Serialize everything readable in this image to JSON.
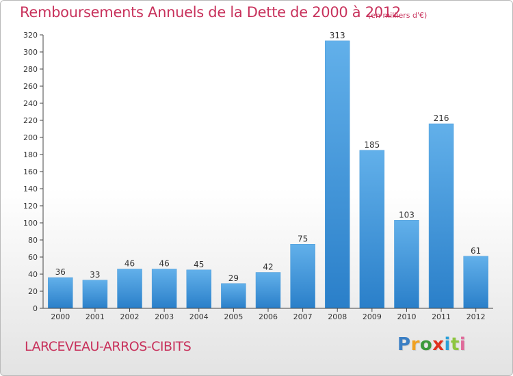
{
  "header": {
    "title": "Remboursements Annuels de la Dette de 2000 à 2012",
    "units": "(en milliers d'€)"
  },
  "footer": {
    "commune": "LARCEVEAU-ARROS-CIBITS",
    "logo_letters": [
      "P",
      "r",
      "o",
      "x",
      "i",
      "t",
      "i"
    ],
    "logo_colors": [
      "#3b7fc4",
      "#f0a020",
      "#3b9a3b",
      "#e0301e",
      "#2aa0d8",
      "#8ec63f",
      "#e06a9a"
    ]
  },
  "colors": {
    "accent": "#c8325c",
    "bar_light": "#62b0ea",
    "bar_dark": "#2a7fc9",
    "axis": "#444444",
    "grid": "#dddddd"
  },
  "chart_data": {
    "type": "bar",
    "title": "Remboursements Annuels de la Dette de 2000 à 2012",
    "subtitle": "(en milliers d'€)",
    "xlabel": "",
    "ylabel": "",
    "categories": [
      "2000",
      "2001",
      "2002",
      "2003",
      "2004",
      "2005",
      "2006",
      "2007",
      "2008",
      "2009",
      "2010",
      "2011",
      "2012"
    ],
    "values": [
      36,
      33,
      46,
      46,
      45,
      29,
      42,
      75,
      313,
      185,
      103,
      216,
      61
    ],
    "ylim": [
      0,
      320
    ],
    "yticks": [
      0,
      20,
      40,
      60,
      80,
      100,
      120,
      140,
      160,
      180,
      200,
      220,
      240,
      260,
      280,
      300,
      320
    ],
    "grid": false,
    "legend": "none"
  }
}
